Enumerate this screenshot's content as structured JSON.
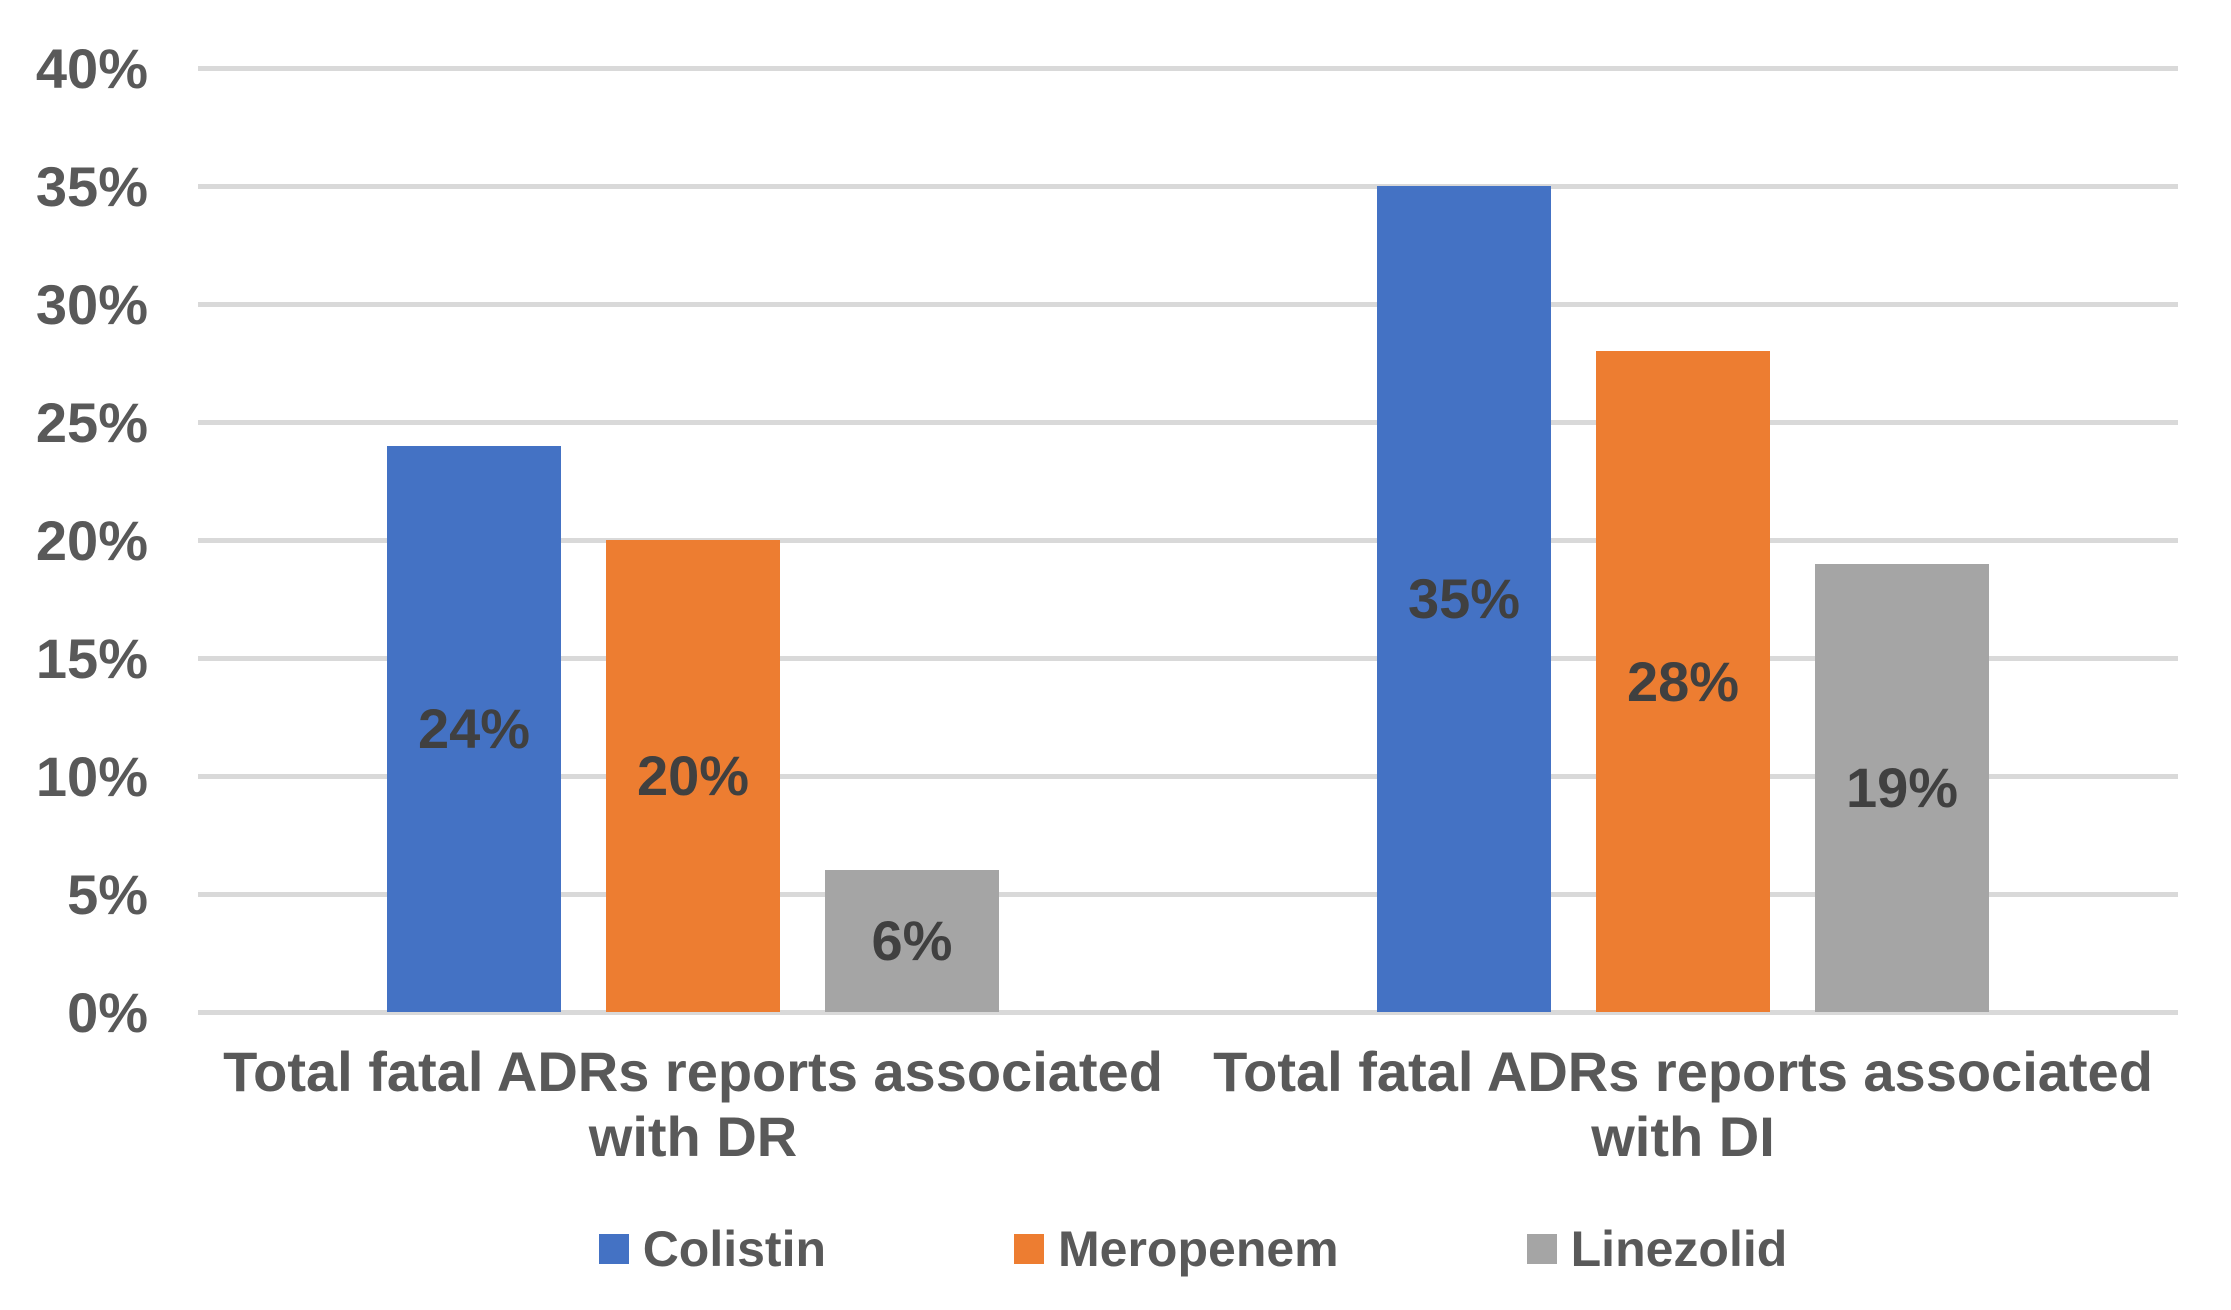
{
  "chart_data": {
    "type": "bar",
    "title": "",
    "categories": [
      {
        "lines": [
          "Total fatal ADRs reports associated",
          "with DR"
        ]
      },
      {
        "lines": [
          "Total fatal ADRs reports associated",
          "with DI"
        ]
      }
    ],
    "series": [
      {
        "name": "Colistin",
        "color": "#4472C4",
        "values": [
          24,
          35
        ],
        "labels": [
          "24%",
          "35%"
        ]
      },
      {
        "name": "Meropenem",
        "color": "#ED7D31",
        "values": [
          20,
          28
        ],
        "labels": [
          "20%",
          "28%"
        ]
      },
      {
        "name": "Linezolid",
        "color": "#A5A5A5",
        "values": [
          6,
          19
        ],
        "labels": [
          "6%",
          "19%"
        ]
      }
    ],
    "y_axis": {
      "min": 0,
      "max": 40,
      "step": 5,
      "unit": "%",
      "tick_labels": [
        "0%",
        "5%",
        "10%",
        "15%",
        "20%",
        "25%",
        "30%",
        "35%",
        "40%"
      ]
    },
    "legend": {
      "position": "bottom",
      "entries": [
        "Colistin",
        "Meropenem",
        "Linezolid"
      ]
    },
    "grid": true,
    "colors": {
      "background": "#FFFFFF",
      "grid": "#D9D9D9",
      "axis_text": "#595959",
      "category_text": "#595959",
      "data_label_text": "#404040",
      "legend_text": "#595959"
    }
  }
}
